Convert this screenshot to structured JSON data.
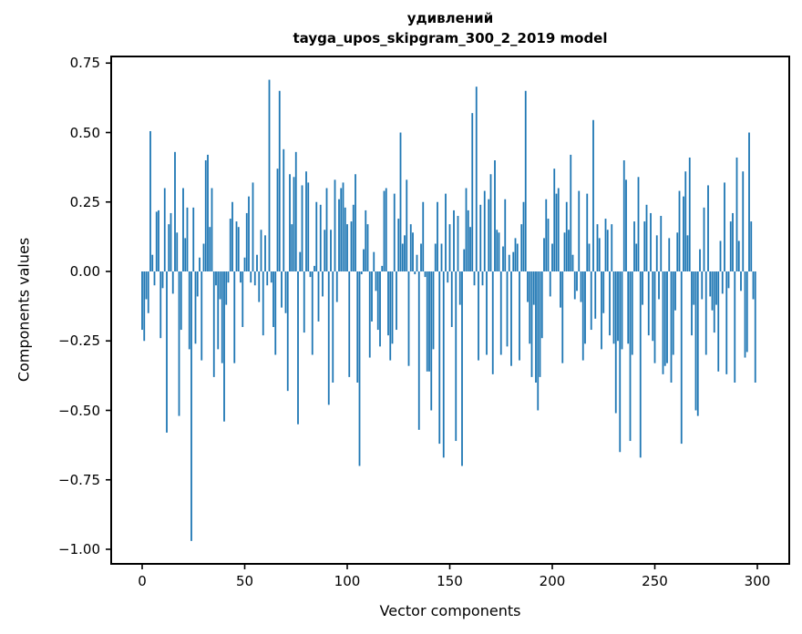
{
  "chart_data": {
    "type": "bar",
    "title": "удивлений\ntayga_upos_skipgram_300_2_2019 model",
    "title_line1": "удивлений",
    "title_line2": "tayga_upos_skipgram_300_2_2019 model",
    "xlabel": "Vector components",
    "ylabel": "Components values",
    "bar_color": "#1f77b4",
    "spine_color": "#000000",
    "grid": false,
    "legend_position": "none",
    "x_ticks": [
      0,
      50,
      100,
      150,
      200,
      250,
      300
    ],
    "x_tick_labels": [
      "0",
      "50",
      "100",
      "150",
      "200",
      "250",
      "300"
    ],
    "y_ticks": [
      0.75,
      0.5,
      0.25,
      0.0,
      -0.25,
      -0.5,
      -0.75,
      -1.0
    ],
    "y_tick_labels": [
      "0.75",
      "0.50",
      "0.25",
      "0.00",
      "−0.25",
      "−0.50",
      "−0.75",
      "−1.00"
    ],
    "xlim": [
      -15.1,
      315.6
    ],
    "ylim": [
      -1.05,
      0.77
    ],
    "n_components": 300,
    "values": [
      -0.21,
      -0.25,
      -0.1,
      -0.15,
      0.505,
      0.06,
      -0.05,
      0.215,
      0.22,
      -0.24,
      -0.06,
      0.3,
      -0.58,
      0.17,
      0.21,
      -0.08,
      0.43,
      0.14,
      -0.52,
      -0.21,
      0.3,
      0.12,
      0.23,
      -0.28,
      -0.97,
      0.23,
      -0.26,
      -0.09,
      0.05,
      -0.32,
      0.1,
      0.4,
      0.42,
      0.16,
      0.3,
      -0.38,
      -0.05,
      -0.28,
      -0.1,
      -0.33,
      -0.54,
      -0.12,
      -0.04,
      0.19,
      0.25,
      -0.33,
      0.18,
      0.16,
      -0.04,
      -0.2,
      0.05,
      0.21,
      0.27,
      -0.04,
      0.32,
      -0.05,
      0.06,
      -0.11,
      0.15,
      -0.23,
      0.13,
      -0.05,
      0.69,
      -0.04,
      -0.2,
      -0.3,
      0.37,
      0.65,
      -0.13,
      0.44,
      -0.15,
      -0.43,
      0.35,
      0.17,
      0.34,
      0.43,
      -0.55,
      0.07,
      0.31,
      -0.22,
      0.36,
      0.32,
      -0.02,
      -0.3,
      0.02,
      0.25,
      -0.18,
      0.24,
      -0.09,
      0.15,
      0.3,
      -0.48,
      0.15,
      -0.4,
      0.33,
      -0.11,
      0.26,
      0.3,
      0.32,
      0.23,
      0.17,
      -0.38,
      0.18,
      0.24,
      0.35,
      -0.4,
      -0.7,
      -0.01,
      0.08,
      0.22,
      0.17,
      -0.31,
      -0.18,
      0.07,
      -0.07,
      -0.21,
      -0.27,
      0.02,
      0.29,
      0.3,
      -0.23,
      -0.32,
      -0.26,
      0.28,
      -0.21,
      0.19,
      0.5,
      0.1,
      0.13,
      0.33,
      -0.34,
      0.17,
      0.14,
      -0.01,
      0.06,
      -0.57,
      0.1,
      0.25,
      -0.02,
      -0.36,
      -0.36,
      -0.5,
      -0.28,
      0.1,
      0.25,
      -0.62,
      0.1,
      -0.67,
      0.28,
      -0.04,
      0.17,
      -0.2,
      0.22,
      -0.61,
      0.2,
      -0.12,
      -0.7,
      0.08,
      0.3,
      0.22,
      0.16,
      0.57,
      -0.05,
      0.665,
      -0.32,
      0.24,
      -0.05,
      0.29,
      -0.3,
      0.26,
      0.35,
      -0.37,
      0.4,
      0.15,
      0.14,
      -0.3,
      0.09,
      0.26,
      -0.27,
      0.06,
      -0.34,
      0.07,
      0.12,
      0.1,
      -0.32,
      0.17,
      0.25,
      0.65,
      -0.11,
      -0.26,
      -0.38,
      -0.12,
      -0.4,
      -0.5,
      -0.38,
      -0.24,
      0.12,
      0.26,
      0.19,
      -0.09,
      0.1,
      0.37,
      0.28,
      0.3,
      -0.13,
      -0.33,
      0.14,
      0.25,
      0.15,
      0.42,
      0.06,
      -0.1,
      -0.07,
      0.29,
      -0.11,
      -0.32,
      -0.26,
      0.28,
      0.1,
      -0.21,
      0.545,
      -0.17,
      0.17,
      0.12,
      -0.28,
      -0.15,
      0.19,
      0.15,
      -0.23,
      0.17,
      -0.26,
      -0.51,
      -0.25,
      -0.65,
      -0.28,
      0.4,
      0.33,
      -0.26,
      -0.61,
      -0.3,
      0.18,
      0.1,
      0.34,
      -0.67,
      -0.12,
      0.18,
      0.24,
      -0.23,
      0.21,
      -0.25,
      -0.33,
      0.13,
      -0.1,
      0.2,
      -0.37,
      -0.34,
      -0.33,
      0.12,
      -0.4,
      -0.3,
      -0.14,
      0.14,
      0.29,
      -0.62,
      0.27,
      0.36,
      0.13,
      0.41,
      -0.23,
      -0.12,
      -0.5,
      -0.52,
      0.08,
      -0.1,
      0.23,
      -0.3,
      0.31,
      -0.09,
      -0.14,
      -0.22,
      -0.12,
      -0.36,
      0.11,
      -0.08,
      0.32,
      -0.37,
      -0.06,
      0.18,
      0.21,
      -0.4,
      0.41,
      0.11,
      -0.07,
      0.36,
      -0.31,
      -0.29,
      0.5,
      0.18,
      -0.1,
      -0.4
    ]
  }
}
